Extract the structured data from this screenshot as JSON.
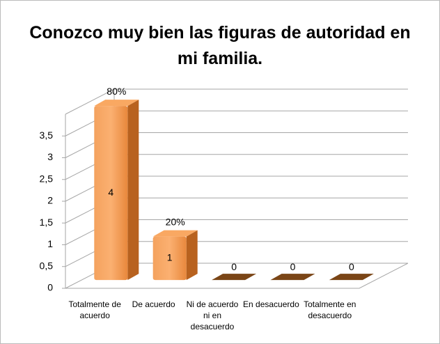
{
  "chart_data": {
    "type": "bar3d",
    "title": "Conozco muy bien las figuras de autoridad en mi familia.",
    "categories": [
      "Totalmente de acuerdo",
      "De acuerdo",
      "Ni de acuerdo ni en desacuerdo",
      "En desacuerdo",
      "Totalmente en desacuerdo"
    ],
    "values": [
      4,
      1,
      0,
      0,
      0
    ],
    "percentages": {
      "values": [
        80,
        20,
        null,
        null,
        null
      ],
      "value_labels": [
        "80%",
        "20%",
        null,
        null,
        null
      ]
    },
    "color": "#f79646",
    "ylim": [
      0,
      4
    ],
    "yticks": [
      0,
      {
        "value": 0.5,
        "label": "0,5"
      },
      1,
      {
        "value": 1.5,
        "label": "1,5"
      },
      2,
      {
        "value": 2.5,
        "label": "2,5"
      },
      3,
      {
        "value": 3.5,
        "label": "3,5"
      }
    ],
    "grid": true
  }
}
